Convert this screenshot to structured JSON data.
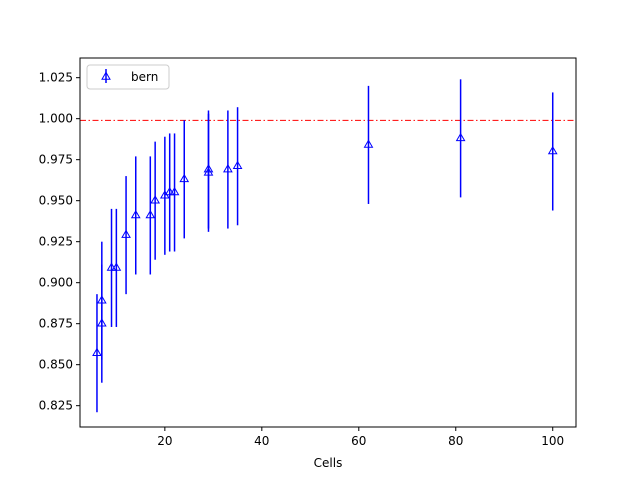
{
  "chart_data": {
    "type": "scatter",
    "xlabel": "Cells",
    "ylabel": "",
    "xlim": [
      2.5,
      104.8
    ],
    "ylim": [
      0.812,
      1.037
    ],
    "x_ticks": [
      "20",
      "40",
      "60",
      "80",
      "100"
    ],
    "y_ticks": [
      "0.825",
      "0.850",
      "0.875",
      "0.900",
      "0.925",
      "0.950",
      "0.975",
      "1.000",
      "1.025"
    ],
    "reference_line": {
      "y": 0.999,
      "style": "dash-dot",
      "color": "#ff0000"
    },
    "legend": {
      "position": "top-left",
      "entries": [
        "bern"
      ]
    },
    "grid": false,
    "series": [
      {
        "name": "bern",
        "color": "#0000ff",
        "marker": "triangle",
        "points": [
          {
            "x": 6,
            "y": 0.857,
            "err": 0.036
          },
          {
            "x": 7,
            "y": 0.875,
            "err": 0.036
          },
          {
            "x": 7,
            "y": 0.889,
            "err": 0.036
          },
          {
            "x": 9,
            "y": 0.909,
            "err": 0.036
          },
          {
            "x": 10,
            "y": 0.909,
            "err": 0.036
          },
          {
            "x": 12,
            "y": 0.929,
            "err": 0.036
          },
          {
            "x": 14,
            "y": 0.941,
            "err": 0.036
          },
          {
            "x": 17,
            "y": 0.941,
            "err": 0.036
          },
          {
            "x": 18,
            "y": 0.95,
            "err": 0.036
          },
          {
            "x": 20,
            "y": 0.953,
            "err": 0.036
          },
          {
            "x": 21,
            "y": 0.955,
            "err": 0.036
          },
          {
            "x": 22,
            "y": 0.955,
            "err": 0.036
          },
          {
            "x": 24,
            "y": 0.963,
            "err": 0.036
          },
          {
            "x": 29,
            "y": 0.967,
            "err": 0.036
          },
          {
            "x": 29,
            "y": 0.969,
            "err": 0.036
          },
          {
            "x": 33,
            "y": 0.969,
            "err": 0.036
          },
          {
            "x": 35,
            "y": 0.971,
            "err": 0.036
          },
          {
            "x": 62,
            "y": 0.984,
            "err": 0.036
          },
          {
            "x": 81,
            "y": 0.988,
            "err": 0.036
          },
          {
            "x": 100,
            "y": 0.98,
            "err": 0.036
          }
        ]
      }
    ]
  }
}
